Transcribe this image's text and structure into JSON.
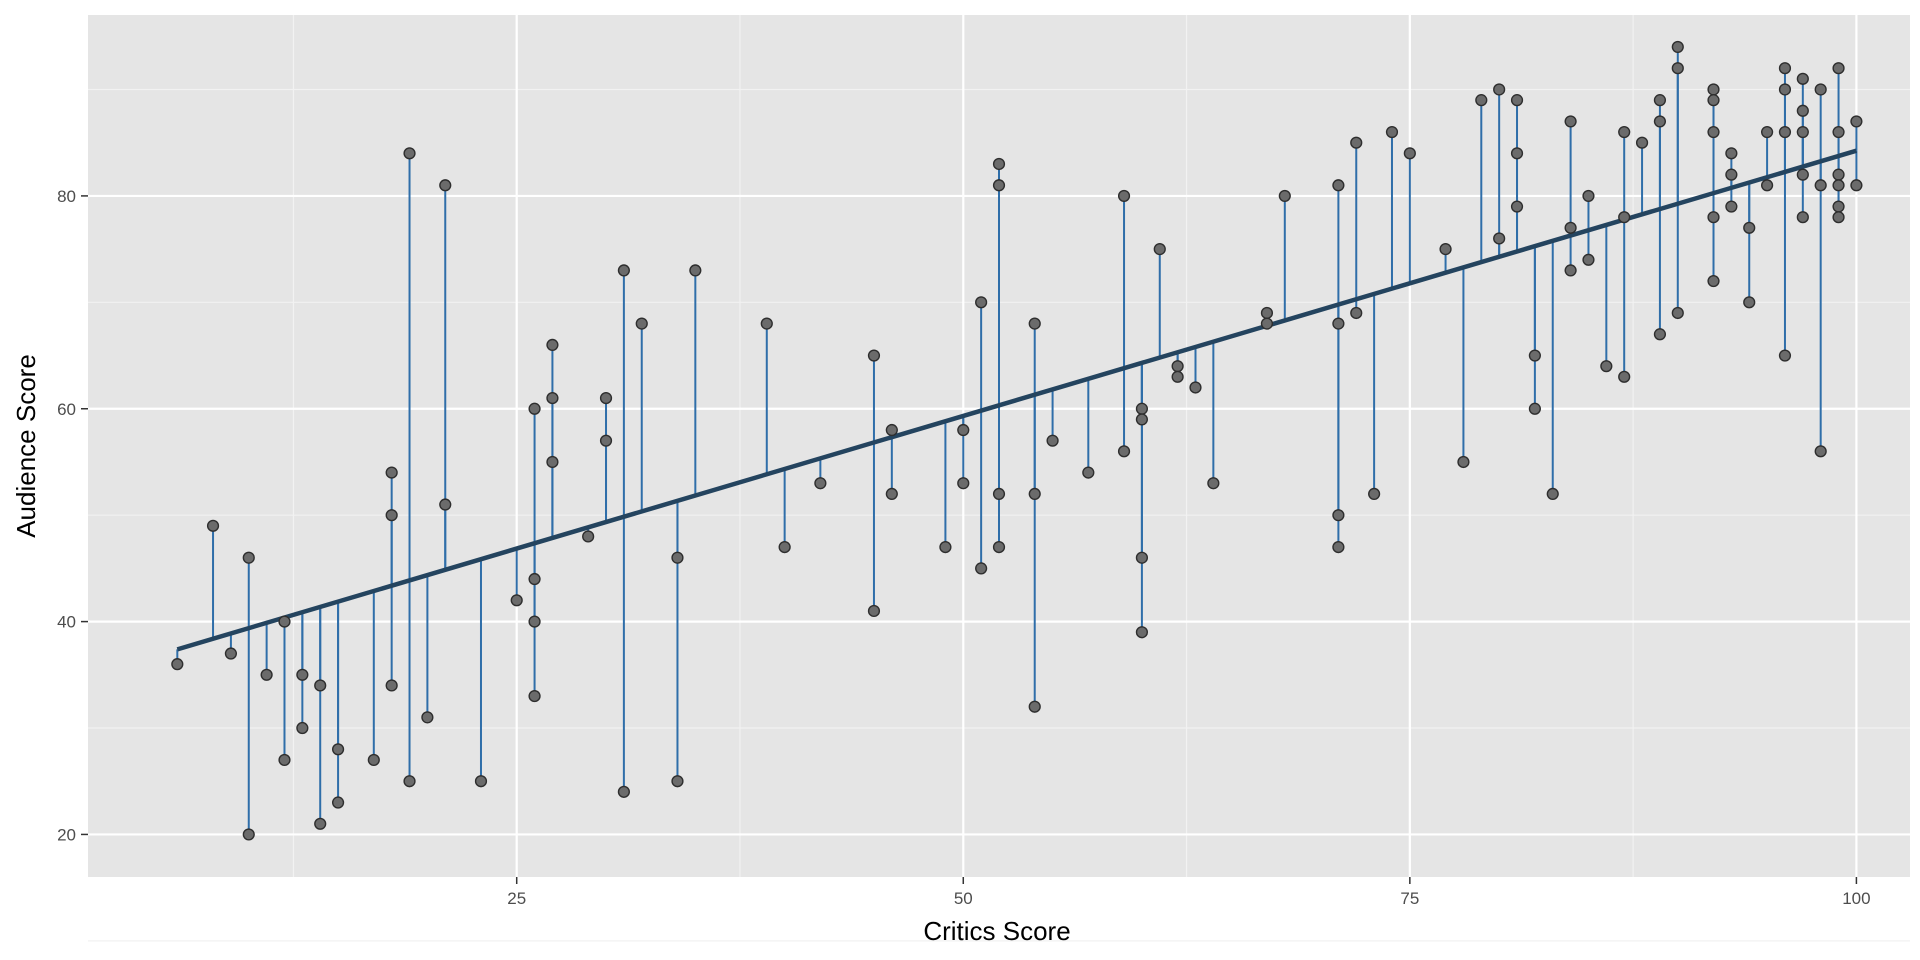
{
  "colors": {
    "panel": "#e5e5e5",
    "grid_major": "#ffffff",
    "grid_minor": "#f2f2f2",
    "residual": "#2f6ea9",
    "fit_line": "#24445f",
    "point_fill": "#6b6b6b",
    "point_stroke": "#2e2e2e",
    "tick_text": "#4d4d4d"
  },
  "chart_data": {
    "type": "scatter",
    "title": "",
    "xlabel": "Critics Score",
    "ylabel": "Audience Score",
    "xlim": [
      1,
      103
    ],
    "ylim": [
      16,
      97
    ],
    "x_ticks": [
      25,
      50,
      75,
      100
    ],
    "y_ticks": [
      20,
      40,
      60,
      80
    ],
    "x_tick_labels": [
      "25",
      "50",
      "75",
      "100"
    ],
    "y_tick_labels": [
      "20",
      "40",
      "60",
      "80"
    ],
    "grid": true,
    "legend": "none",
    "regression_line": {
      "intercept": 34.4,
      "slope": 0.4985
    },
    "points": [
      [
        6,
        36
      ],
      [
        8,
        49
      ],
      [
        9,
        37
      ],
      [
        10,
        46
      ],
      [
        10,
        20
      ],
      [
        11,
        35
      ],
      [
        12,
        40
      ],
      [
        12,
        27
      ],
      [
        13,
        35
      ],
      [
        13,
        30
      ],
      [
        14,
        34
      ],
      [
        14,
        21
      ],
      [
        15,
        28
      ],
      [
        15,
        23
      ],
      [
        17,
        27
      ],
      [
        18,
        54
      ],
      [
        18,
        50
      ],
      [
        18,
        34
      ],
      [
        19,
        84
      ],
      [
        19,
        25
      ],
      [
        20,
        31
      ],
      [
        21,
        81
      ],
      [
        21,
        51
      ],
      [
        23,
        25
      ],
      [
        25,
        42
      ],
      [
        26,
        60
      ],
      [
        26,
        44
      ],
      [
        26,
        40
      ],
      [
        26,
        33
      ],
      [
        27,
        66
      ],
      [
        27,
        61
      ],
      [
        27,
        55
      ],
      [
        29,
        48
      ],
      [
        30,
        61
      ],
      [
        30,
        57
      ],
      [
        31,
        73
      ],
      [
        31,
        24
      ],
      [
        32,
        68
      ],
      [
        34,
        46
      ],
      [
        34,
        25
      ],
      [
        35,
        73
      ],
      [
        39,
        68
      ],
      [
        40,
        47
      ],
      [
        42,
        53
      ],
      [
        45,
        65
      ],
      [
        45,
        41
      ],
      [
        46,
        58
      ],
      [
        46,
        52
      ],
      [
        49,
        47
      ],
      [
        50,
        58
      ],
      [
        50,
        53
      ],
      [
        51,
        70
      ],
      [
        51,
        45
      ],
      [
        52,
        83
      ],
      [
        52,
        81
      ],
      [
        52,
        52
      ],
      [
        52,
        47
      ],
      [
        54,
        68
      ],
      [
        54,
        52
      ],
      [
        54,
        32
      ],
      [
        55,
        57
      ],
      [
        57,
        54
      ],
      [
        59,
        80
      ],
      [
        59,
        56
      ],
      [
        60,
        60
      ],
      [
        60,
        59
      ],
      [
        60,
        46
      ],
      [
        60,
        39
      ],
      [
        61,
        75
      ],
      [
        62,
        64
      ],
      [
        62,
        63
      ],
      [
        63,
        62
      ],
      [
        64,
        53
      ],
      [
        67,
        69
      ],
      [
        67,
        68
      ],
      [
        68,
        80
      ],
      [
        71,
        81
      ],
      [
        71,
        68
      ],
      [
        71,
        50
      ],
      [
        71,
        47
      ],
      [
        72,
        85
      ],
      [
        72,
        69
      ],
      [
        73,
        52
      ],
      [
        74,
        86
      ],
      [
        75,
        84
      ],
      [
        77,
        75
      ],
      [
        78,
        55
      ],
      [
        79,
        89
      ],
      [
        80,
        90
      ],
      [
        80,
        76
      ],
      [
        81,
        89
      ],
      [
        81,
        84
      ],
      [
        81,
        79
      ],
      [
        82,
        65
      ],
      [
        82,
        60
      ],
      [
        83,
        52
      ],
      [
        84,
        87
      ],
      [
        84,
        77
      ],
      [
        84,
        73
      ],
      [
        85,
        80
      ],
      [
        85,
        74
      ],
      [
        86,
        64
      ],
      [
        87,
        86
      ],
      [
        87,
        78
      ],
      [
        87,
        63
      ],
      [
        88,
        85
      ],
      [
        89,
        89
      ],
      [
        89,
        87
      ],
      [
        89,
        67
      ],
      [
        90,
        94
      ],
      [
        90,
        92
      ],
      [
        90,
        69
      ],
      [
        92,
        90
      ],
      [
        92,
        89
      ],
      [
        92,
        86
      ],
      [
        92,
        78
      ],
      [
        92,
        72
      ],
      [
        93,
        84
      ],
      [
        93,
        82
      ],
      [
        93,
        79
      ],
      [
        94,
        77
      ],
      [
        94,
        70
      ],
      [
        95,
        86
      ],
      [
        95,
        81
      ],
      [
        96,
        92
      ],
      [
        96,
        90
      ],
      [
        96,
        86
      ],
      [
        96,
        65
      ],
      [
        97,
        91
      ],
      [
        97,
        88
      ],
      [
        97,
        86
      ],
      [
        97,
        82
      ],
      [
        97,
        78
      ],
      [
        98,
        90
      ],
      [
        98,
        81
      ],
      [
        98,
        56
      ],
      [
        99,
        92
      ],
      [
        99,
        86
      ],
      [
        99,
        82
      ],
      [
        99,
        81
      ],
      [
        99,
        79
      ],
      [
        99,
        78
      ],
      [
        100,
        87
      ],
      [
        100,
        81
      ]
    ]
  }
}
